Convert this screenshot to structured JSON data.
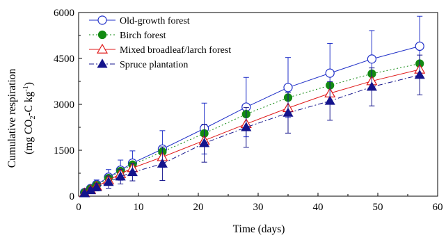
{
  "chart_data": {
    "type": "line",
    "title": "",
    "xlabel": "Time (days)",
    "ylabel_line1": "Cumulative respiration",
    "ylabel_line2": {
      "open": "(mg CO",
      "sub": "2",
      "mid": "-C  kg",
      "sup": "-1",
      "close": ")"
    },
    "xlim": [
      0,
      60
    ],
    "ylim": [
      0,
      6000
    ],
    "xticks": [
      0,
      10,
      20,
      30,
      40,
      50,
      60
    ],
    "yticks": [
      0,
      1500,
      3000,
      4500,
      6000
    ],
    "grid": false,
    "legend_position": "top-left",
    "x": [
      1,
      2,
      3,
      5,
      7,
      9,
      14,
      21,
      28,
      35,
      42,
      49,
      57
    ],
    "series": [
      {
        "name": "Old-growth forest",
        "color": "#1f2fc8",
        "line_style": "solid",
        "marker": "open-circle",
        "values": [
          120,
          250,
          380,
          620,
          850,
          1080,
          1540,
          2210,
          2910,
          3550,
          4020,
          4480,
          4900
        ],
        "errors": [
          50,
          100,
          150,
          250,
          330,
          400,
          600,
          830,
          970,
          980,
          970,
          930,
          980
        ]
      },
      {
        "name": "Birch forest",
        "color": "#128a12",
        "line_style": "dotted",
        "marker": "filled-circle",
        "values": [
          115,
          240,
          360,
          590,
          820,
          1030,
          1450,
          2050,
          2680,
          3220,
          3620,
          4000,
          4330
        ]
      },
      {
        "name": "Mixed broadleaf/larch forest",
        "color": "#e01818",
        "line_style": "solid",
        "marker": "open-triangle",
        "values": [
          100,
          210,
          320,
          520,
          730,
          920,
          1280,
          1820,
          2360,
          2880,
          3360,
          3760,
          4140
        ]
      },
      {
        "name": "Spruce plantation",
        "color": "#14148c",
        "line_style": "dash-dot",
        "marker": "filled-triangle",
        "values": [
          90,
          190,
          290,
          460,
          640,
          780,
          1060,
          1730,
          2250,
          2720,
          3110,
          3570,
          3960
        ],
        "errors": [
          40,
          80,
          120,
          200,
          240,
          280,
          550,
          620,
          650,
          660,
          630,
          620,
          650
        ]
      }
    ]
  }
}
